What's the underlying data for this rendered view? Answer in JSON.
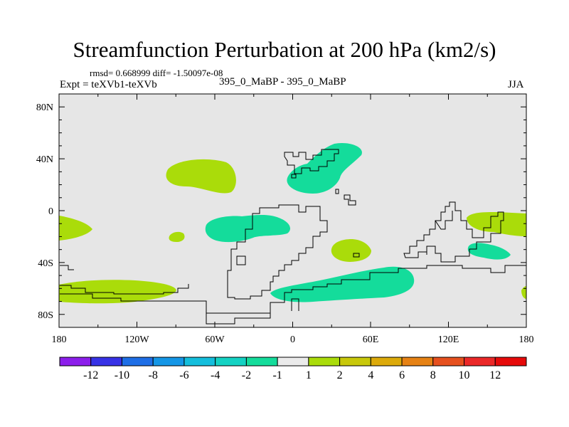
{
  "header": {
    "title": "Streamfunction Perturbation at 200 hPa (km2/s)",
    "stats": "rmsd= 0.668999 diff= -1.50097e-08",
    "experiment": "Expt = teXVb1-teXVb",
    "case": "395_0_MaBP - 395_0_MaBP",
    "season": "JJA"
  },
  "chart_data": {
    "type": "heatmap",
    "title": "Streamfunction Perturbation at 200 hPa (km2/s)",
    "xlabel": "",
    "ylabel": "",
    "xlim": [
      -180,
      180
    ],
    "ylim": [
      -90,
      90
    ],
    "x_ticks": [
      {
        "value": -180,
        "label": "180"
      },
      {
        "value": -120,
        "label": "120W"
      },
      {
        "value": -60,
        "label": "60W"
      },
      {
        "value": 0,
        "label": "0"
      },
      {
        "value": 60,
        "label": "60E"
      },
      {
        "value": 120,
        "label": "120E"
      },
      {
        "value": 180,
        "label": "180"
      }
    ],
    "y_ticks": [
      {
        "value": 80,
        "label": "80N"
      },
      {
        "value": 40,
        "label": "40N"
      },
      {
        "value": 0,
        "label": "0"
      },
      {
        "value": -40,
        "label": "40S"
      },
      {
        "value": -80,
        "label": "80S"
      }
    ],
    "background_color": "#e6e6e6",
    "colorbar": {
      "labels": [
        "-12",
        "-10",
        "-8",
        "-6",
        "-4",
        "-2",
        "-1",
        "1",
        "2",
        "4",
        "6",
        "8",
        "10",
        "12"
      ],
      "colors": [
        "#8c1eeb",
        "#3732e6",
        "#1e6ee6",
        "#1496e6",
        "#14bedc",
        "#14d2c3",
        "#14dc9b",
        "#ebebeb",
        "#aadc0a",
        "#c8c80a",
        "#dcaa0a",
        "#e68214",
        "#e6501e",
        "#eb2828",
        "#e60a0a"
      ]
    },
    "anomalies": [
      {
        "name": "north-pacific-positive",
        "sign": "positive",
        "range": "1 to 2",
        "lon": -100,
        "lat": 31
      },
      {
        "name": "central-asia-negative",
        "sign": "negative",
        "range": "-2 to -1",
        "lon": 30,
        "lat": 32
      },
      {
        "name": "east-pacific-positive",
        "sign": "positive",
        "range": "1 to 2",
        "lon": -172,
        "lat": -13
      },
      {
        "name": "central-pacific-positive",
        "sign": "positive",
        "range": "1 to 2",
        "lon": -107,
        "lat": -20
      },
      {
        "name": "south-america-negative",
        "sign": "negative",
        "range": "-2 to -1",
        "lon": -33,
        "lat": -15
      },
      {
        "name": "indian-ocean-positive",
        "sign": "positive",
        "range": "1 to 2",
        "lon": 48,
        "lat": -31
      },
      {
        "name": "australia-negative",
        "sign": "negative",
        "range": "-2 to -1",
        "lon": 150,
        "lat": -31
      },
      {
        "name": "west-pacific-positive",
        "sign": "positive",
        "range": "1 to 2",
        "lon": 163,
        "lat": -10
      },
      {
        "name": "south-pacific-positive",
        "sign": "positive",
        "range": "1 to 2",
        "lon": -135,
        "lat": -64
      },
      {
        "name": "southern-ocean-negative",
        "sign": "negative",
        "range": "-2 to -1",
        "lon": 45,
        "lat": -58
      },
      {
        "name": "dateline-positive",
        "sign": "positive",
        "range": "1 to 2",
        "lon": 178,
        "lat": -64
      }
    ]
  }
}
